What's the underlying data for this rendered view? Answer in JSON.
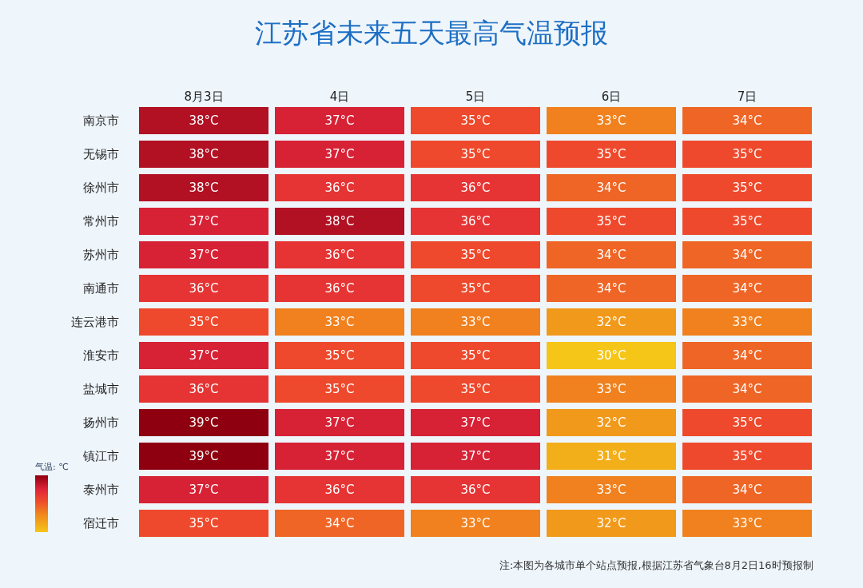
{
  "chart_data": {
    "type": "heatmap",
    "title": "江苏省未来五天最高气温预报",
    "categories": [
      "8月3日",
      "4日",
      "5日",
      "6日",
      "7日"
    ],
    "y_categories": [
      "南京市",
      "无锡市",
      "徐州市",
      "常州市",
      "苏州市",
      "南通市",
      "连云港市",
      "淮安市",
      "盐城市",
      "扬州市",
      "镇江市",
      "泰州市",
      "宿迁市"
    ],
    "cells": [
      [
        38,
        37,
        35,
        33,
        34
      ],
      [
        38,
        37,
        35,
        35,
        35
      ],
      [
        38,
        36,
        36,
        34,
        35
      ],
      [
        37,
        38,
        36,
        35,
        35
      ],
      [
        37,
        36,
        35,
        34,
        34
      ],
      [
        36,
        36,
        35,
        34,
        34
      ],
      [
        35,
        33,
        33,
        32,
        33
      ],
      [
        37,
        35,
        35,
        30,
        34
      ],
      [
        36,
        35,
        35,
        33,
        34
      ],
      [
        39,
        37,
        37,
        32,
        35
      ],
      [
        39,
        37,
        37,
        31,
        35
      ],
      [
        37,
        36,
        36,
        33,
        34
      ],
      [
        35,
        34,
        33,
        32,
        33
      ]
    ],
    "cell_labels": [
      [
        "38°C",
        "37°C",
        "35°C",
        "33°C",
        "34°C"
      ],
      [
        "38°C",
        "37°C",
        "35°C",
        "35°C",
        "35°C"
      ],
      [
        "38°C",
        "36°C",
        "36°C",
        "34°C",
        "35°C"
      ],
      [
        "37°C",
        "38°C",
        "36°C",
        "35°C",
        "35°C"
      ],
      [
        "37°C",
        "36°C",
        "35°C",
        "34°C",
        "34°C"
      ],
      [
        "36°C",
        "36°C",
        "35°C",
        "34°C",
        "34°C"
      ],
      [
        "35°C",
        "33°C",
        "33°C",
        "32°C",
        "33°C"
      ],
      [
        "37°C",
        "35°C",
        "35°C",
        "30°C",
        "34°C"
      ],
      [
        "36°C",
        "35°C",
        "35°C",
        "33°C",
        "34°C"
      ],
      [
        "39°C",
        "37°C",
        "37°C",
        "32°C",
        "35°C"
      ],
      [
        "39°C",
        "37°C",
        "37°C",
        "31°C",
        "35°C"
      ],
      [
        "37°C",
        "36°C",
        "36°C",
        "33°C",
        "34°C"
      ],
      [
        "35°C",
        "34°C",
        "33°C",
        "32°C",
        "33°C"
      ]
    ],
    "clabel": "气温: ℃",
    "annotations": [
      "注:本图为各城市单个站点预报,根据江苏省气象台8月2日16时预报制"
    ]
  }
}
